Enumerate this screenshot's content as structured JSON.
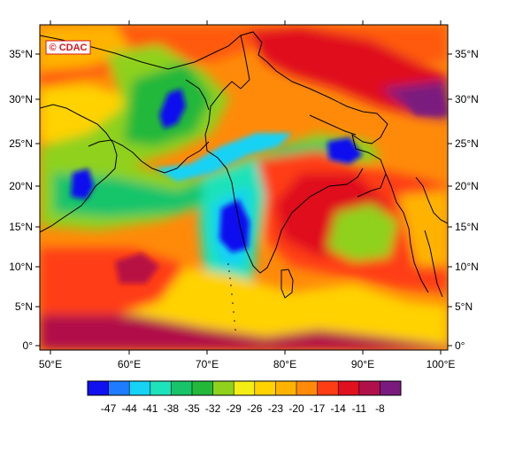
{
  "credit": "© CDAC",
  "axes": {
    "lon_ticks": [
      "50°E",
      "60°E",
      "70°E",
      "80°E",
      "90°E",
      "100°E"
    ],
    "lat_ticks": [
      "35°N",
      "30°N",
      "25°N",
      "20°N",
      "15°N",
      "10°N",
      "5°N",
      "0°"
    ]
  },
  "colorbar": {
    "labels": [
      "-47",
      "-44",
      "-41",
      "-38",
      "-35",
      "-32",
      "-29",
      "-26",
      "-23",
      "-20",
      "-17",
      "-14",
      "-11",
      "-8"
    ],
    "colors": [
      "#1010f0",
      "#1f7bff",
      "#16d2f5",
      "#1ee2b9",
      "#18c46a",
      "#24b83a",
      "#8fd11c",
      "#f5ee14",
      "#ffd200",
      "#ffb300",
      "#ff8a0a",
      "#ff3d14",
      "#e0101e",
      "#b0104a",
      "#7a1a7f"
    ]
  }
}
